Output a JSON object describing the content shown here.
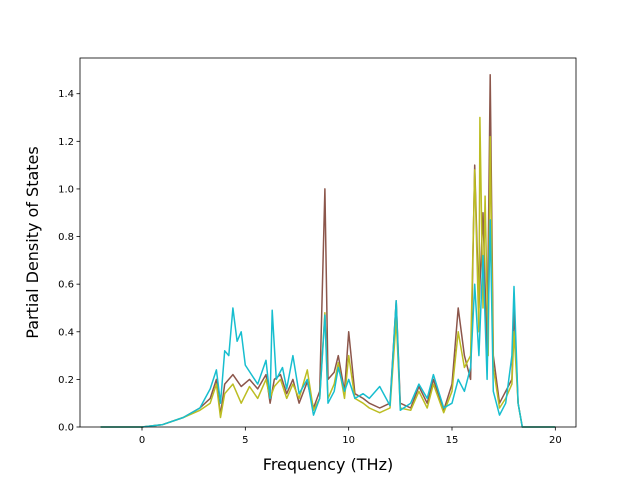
{
  "chart_data": {
    "type": "line",
    "xlabel": "Frequency (THz)",
    "ylabel": "Partial Density of States",
    "xlim": [
      -3,
      21
    ],
    "ylim": [
      0,
      1.55
    ],
    "xticks": [
      0,
      5,
      10,
      15,
      20
    ],
    "yticks": [
      0.0,
      0.2,
      0.4,
      0.6,
      0.8,
      1.0,
      1.2,
      1.4
    ],
    "xtick_labels": [
      "0",
      "5",
      "10",
      "15",
      "20"
    ],
    "ytick_labels": [
      "0.0",
      "0.2",
      "0.4",
      "0.6",
      "0.8",
      "1.0",
      "1.2",
      "1.4"
    ],
    "grid": false,
    "series": [
      {
        "color": "#8c564b",
        "points": [
          [
            -2,
            0
          ],
          [
            0,
            0
          ],
          [
            1,
            0.01
          ],
          [
            2,
            0.04
          ],
          [
            2.8,
            0.08
          ],
          [
            3.3,
            0.12
          ],
          [
            3.6,
            0.2
          ],
          [
            3.8,
            0.05
          ],
          [
            4.0,
            0.18
          ],
          [
            4.4,
            0.22
          ],
          [
            4.8,
            0.17
          ],
          [
            5.2,
            0.2
          ],
          [
            5.6,
            0.16
          ],
          [
            6.0,
            0.22
          ],
          [
            6.2,
            0.1
          ],
          [
            6.4,
            0.2
          ],
          [
            6.7,
            0.22
          ],
          [
            7.0,
            0.14
          ],
          [
            7.3,
            0.2
          ],
          [
            7.6,
            0.1
          ],
          [
            8.0,
            0.19
          ],
          [
            8.3,
            0.08
          ],
          [
            8.6,
            0.15
          ],
          [
            8.85,
            1.0
          ],
          [
            9.0,
            0.2
          ],
          [
            9.3,
            0.23
          ],
          [
            9.5,
            0.3
          ],
          [
            9.8,
            0.15
          ],
          [
            10.0,
            0.4
          ],
          [
            10.3,
            0.14
          ],
          [
            10.7,
            0.12
          ],
          [
            11.0,
            0.1
          ],
          [
            11.5,
            0.08
          ],
          [
            12.0,
            0.1
          ],
          [
            12.3,
            0.53
          ],
          [
            12.5,
            0.1
          ],
          [
            13.0,
            0.08
          ],
          [
            13.4,
            0.17
          ],
          [
            13.8,
            0.1
          ],
          [
            14.1,
            0.2
          ],
          [
            14.6,
            0.07
          ],
          [
            15.0,
            0.18
          ],
          [
            15.3,
            0.5
          ],
          [
            15.6,
            0.3
          ],
          [
            15.9,
            0.2
          ],
          [
            16.1,
            1.1
          ],
          [
            16.3,
            0.5
          ],
          [
            16.5,
            0.9
          ],
          [
            16.7,
            0.3
          ],
          [
            16.85,
            1.48
          ],
          [
            17.0,
            0.3
          ],
          [
            17.3,
            0.1
          ],
          [
            17.6,
            0.15
          ],
          [
            17.9,
            0.2
          ],
          [
            18.0,
            0.5
          ],
          [
            18.2,
            0.1
          ],
          [
            18.4,
            0
          ],
          [
            20,
            0
          ]
        ]
      },
      {
        "color": "#bcbd22",
        "points": [
          [
            -2,
            0
          ],
          [
            0,
            0
          ],
          [
            1,
            0.01
          ],
          [
            2,
            0.04
          ],
          [
            2.8,
            0.07
          ],
          [
            3.3,
            0.1
          ],
          [
            3.6,
            0.18
          ],
          [
            3.8,
            0.04
          ],
          [
            4.0,
            0.14
          ],
          [
            4.4,
            0.18
          ],
          [
            4.8,
            0.1
          ],
          [
            5.2,
            0.17
          ],
          [
            5.6,
            0.12
          ],
          [
            6.0,
            0.2
          ],
          [
            6.2,
            0.12
          ],
          [
            6.4,
            0.17
          ],
          [
            6.7,
            0.2
          ],
          [
            7.0,
            0.12
          ],
          [
            7.3,
            0.18
          ],
          [
            7.6,
            0.12
          ],
          [
            8.0,
            0.24
          ],
          [
            8.3,
            0.07
          ],
          [
            8.6,
            0.12
          ],
          [
            8.85,
            0.48
          ],
          [
            9.0,
            0.12
          ],
          [
            9.3,
            0.18
          ],
          [
            9.5,
            0.27
          ],
          [
            9.8,
            0.12
          ],
          [
            10.0,
            0.3
          ],
          [
            10.3,
            0.12
          ],
          [
            10.7,
            0.1
          ],
          [
            11.0,
            0.08
          ],
          [
            11.5,
            0.06
          ],
          [
            12.0,
            0.08
          ],
          [
            12.3,
            0.45
          ],
          [
            12.5,
            0.08
          ],
          [
            13.0,
            0.07
          ],
          [
            13.4,
            0.15
          ],
          [
            13.8,
            0.08
          ],
          [
            14.1,
            0.18
          ],
          [
            14.6,
            0.06
          ],
          [
            15.0,
            0.15
          ],
          [
            15.3,
            0.4
          ],
          [
            15.6,
            0.25
          ],
          [
            15.9,
            0.3
          ],
          [
            16.1,
            1.08
          ],
          [
            16.3,
            0.4
          ],
          [
            16.35,
            1.3
          ],
          [
            16.5,
            0.5
          ],
          [
            16.6,
            0.97
          ],
          [
            16.75,
            0.3
          ],
          [
            16.85,
            1.22
          ],
          [
            17.0,
            0.25
          ],
          [
            17.3,
            0.08
          ],
          [
            17.6,
            0.12
          ],
          [
            17.9,
            0.18
          ],
          [
            18.0,
            0.4
          ],
          [
            18.2,
            0.1
          ],
          [
            18.4,
            0
          ],
          [
            20,
            0
          ]
        ]
      },
      {
        "color": "#17becf",
        "points": [
          [
            -2,
            0
          ],
          [
            0,
            0
          ],
          [
            1,
            0.01
          ],
          [
            2,
            0.04
          ],
          [
            2.8,
            0.08
          ],
          [
            3.3,
            0.16
          ],
          [
            3.6,
            0.24
          ],
          [
            3.8,
            0.1
          ],
          [
            4.0,
            0.32
          ],
          [
            4.2,
            0.3
          ],
          [
            4.4,
            0.5
          ],
          [
            4.6,
            0.36
          ],
          [
            4.8,
            0.4
          ],
          [
            5.0,
            0.26
          ],
          [
            5.3,
            0.22
          ],
          [
            5.6,
            0.18
          ],
          [
            6.0,
            0.28
          ],
          [
            6.2,
            0.12
          ],
          [
            6.3,
            0.49
          ],
          [
            6.5,
            0.2
          ],
          [
            6.8,
            0.25
          ],
          [
            7.0,
            0.16
          ],
          [
            7.3,
            0.3
          ],
          [
            7.6,
            0.14
          ],
          [
            8.0,
            0.2
          ],
          [
            8.3,
            0.05
          ],
          [
            8.6,
            0.12
          ],
          [
            8.85,
            0.47
          ],
          [
            9.0,
            0.1
          ],
          [
            9.3,
            0.15
          ],
          [
            9.5,
            0.25
          ],
          [
            9.8,
            0.15
          ],
          [
            10.0,
            0.2
          ],
          [
            10.3,
            0.12
          ],
          [
            10.7,
            0.14
          ],
          [
            11.0,
            0.12
          ],
          [
            11.5,
            0.17
          ],
          [
            12.0,
            0.09
          ],
          [
            12.3,
            0.53
          ],
          [
            12.5,
            0.07
          ],
          [
            13.0,
            0.1
          ],
          [
            13.4,
            0.18
          ],
          [
            13.8,
            0.12
          ],
          [
            14.1,
            0.22
          ],
          [
            14.6,
            0.08
          ],
          [
            15.0,
            0.1
          ],
          [
            15.3,
            0.2
          ],
          [
            15.6,
            0.15
          ],
          [
            15.9,
            0.25
          ],
          [
            16.1,
            0.6
          ],
          [
            16.3,
            0.3
          ],
          [
            16.5,
            0.72
          ],
          [
            16.7,
            0.2
          ],
          [
            16.85,
            0.87
          ],
          [
            17.0,
            0.15
          ],
          [
            17.3,
            0.05
          ],
          [
            17.6,
            0.1
          ],
          [
            17.9,
            0.3
          ],
          [
            18.0,
            0.59
          ],
          [
            18.2,
            0.1
          ],
          [
            18.4,
            0
          ],
          [
            20,
            0
          ]
        ]
      }
    ]
  }
}
